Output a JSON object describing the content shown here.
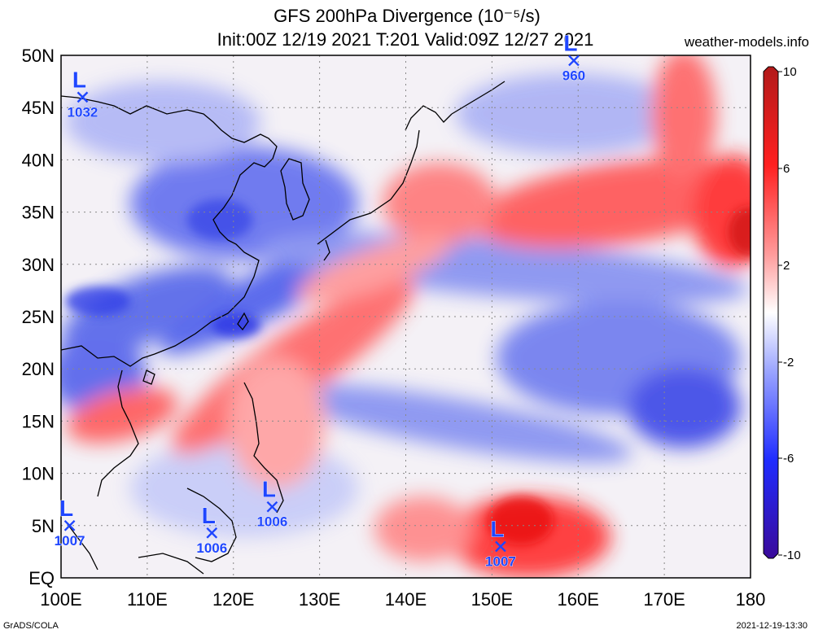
{
  "header": {
    "title_line1": "GFS 200hPa Divergence (10⁻⁵/s)",
    "title_line2": "Init:00Z 12/19 2021 T:201 Valid:09Z 12/27 2021",
    "brand": "weather-models.info"
  },
  "footer": {
    "left": "GrADS/COLA",
    "right": "2021-12-19-13:30"
  },
  "map": {
    "lon_ticks": [
      "100E",
      "110E",
      "120E",
      "130E",
      "140E",
      "150E",
      "160E",
      "170E",
      "180"
    ],
    "lat_ticks": [
      "EQ",
      "5N",
      "10N",
      "15N",
      "20N",
      "25N",
      "30N",
      "35N",
      "40N",
      "45N",
      "50N"
    ],
    "lon_range": [
      100,
      180
    ],
    "lat_range": [
      0,
      50
    ],
    "grid": "dotted"
  },
  "colorbar": {
    "labels": [
      "10",
      "6",
      "2",
      "-2",
      "-6",
      "-10"
    ],
    "colors": {
      "max": "#b21a1a",
      "pos": "#ff2020",
      "zero": "#ffffff",
      "neg": "#1f2cff",
      "min": "#3a0a9a"
    }
  },
  "pressure_systems": [
    {
      "type": "L",
      "value": "1032",
      "lon": 102.5,
      "lat": 46
    },
    {
      "type": "L",
      "value": "960",
      "lon": 159.5,
      "lat": 49.5
    },
    {
      "type": "L",
      "value": "1007",
      "lon": 101,
      "lat": 5
    },
    {
      "type": "L",
      "value": "1006",
      "lon": 117.5,
      "lat": 4.3
    },
    {
      "type": "L",
      "value": "1006",
      "lon": 124.5,
      "lat": 6.8
    },
    {
      "type": "L",
      "value": "1007",
      "lon": 151,
      "lat": 3
    }
  ]
}
